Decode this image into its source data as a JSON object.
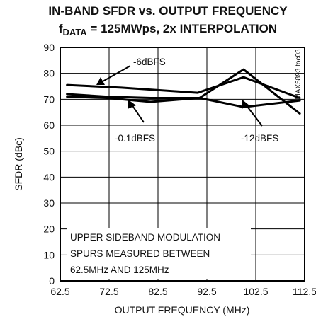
{
  "chart_data": {
    "type": "line",
    "title_line1": "IN-BAND SFDR vs. OUTPUT FREQUENCY",
    "title_line2_prefix": "f",
    "title_line2_sub": "DATA",
    "title_line2_rest": " = 125MWps, 2x INTERPOLATION",
    "xlabel": "OUTPUT FREQUENCY (MHz)",
    "ylabel": "SFDR (dBc)",
    "xlim": [
      62.5,
      112.5
    ],
    "ylim": [
      0,
      90
    ],
    "x_ticks": [
      "62.5",
      "72.5",
      "82.5",
      "92.5",
      "102.5",
      "112.5"
    ],
    "y_ticks": [
      "0",
      "10",
      "20",
      "30",
      "40",
      "50",
      "60",
      "70",
      "80",
      "90"
    ],
    "grid": true,
    "series": [
      {
        "name": "-6dBFS",
        "x": [
          63.9,
          75,
          90.6,
          100,
          111.5
        ],
        "y": [
          75.5,
          74.5,
          72.5,
          78.5,
          70.5
        ]
      },
      {
        "name": "-0.1dBFS",
        "x": [
          63.9,
          72,
          81,
          91,
          100,
          111.5
        ],
        "y": [
          71,
          70.5,
          69,
          70.5,
          81.5,
          64.5
        ]
      },
      {
        "name": "-12dBFS",
        "x": [
          63.9,
          72,
          81,
          91,
          100,
          111.5
        ],
        "y": [
          72,
          71,
          70.5,
          70.5,
          67,
          69.5
        ]
      }
    ],
    "annotations": {
      "label_6": "-6dBFS",
      "label_01": "-0.1dBFS",
      "label_12": "-12dBFS",
      "note_line1": "UPPER SIDEBAND MODULATION",
      "note_line2": "SPURS MEASURED BETWEEN",
      "note_line3": "62.5MHz AND 125MHz",
      "side_code": "MAX5893 toc03"
    }
  }
}
